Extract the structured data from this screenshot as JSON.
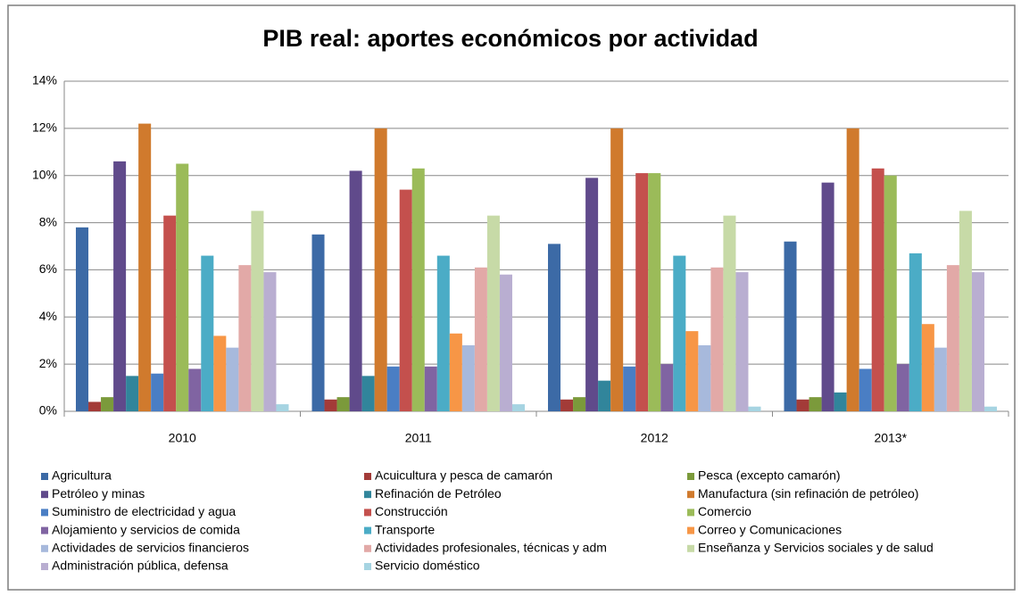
{
  "chart_data": {
    "type": "bar",
    "title": "PIB real: aportes económicos por actividad",
    "categories": [
      "2010",
      "2011",
      "2012",
      "2013*"
    ],
    "ylim": [
      0,
      14
    ],
    "yticks": [
      {
        "value": 0,
        "label": "0%"
      },
      {
        "value": 2,
        "label": "2%"
      },
      {
        "value": 4,
        "label": "4%"
      },
      {
        "value": 6,
        "label": "6%"
      },
      {
        "value": 8,
        "label": "8%"
      },
      {
        "value": 10,
        "label": "10%"
      },
      {
        "value": 12,
        "label": "12%"
      },
      {
        "value": 14,
        "label": "14%"
      }
    ],
    "grid": true,
    "legend": "bottom",
    "series": [
      {
        "name": "Agricultura",
        "color": "#3c6aa6",
        "values": [
          7.8,
          7.5,
          7.1,
          7.2
        ]
      },
      {
        "name": "Acuicultura y pesca de camarón",
        "color": "#a33b38",
        "values": [
          0.4,
          0.5,
          0.5,
          0.5
        ]
      },
      {
        "name": "Pesca (excepto camarón)",
        "color": "#7b9a3b",
        "values": [
          0.6,
          0.6,
          0.6,
          0.6
        ]
      },
      {
        "name": "Petróleo y minas",
        "color": "#604a8b",
        "values": [
          10.6,
          10.2,
          9.9,
          9.7
        ]
      },
      {
        "name": "Refinación de Petróleo",
        "color": "#31859b",
        "values": [
          1.5,
          1.5,
          1.3,
          0.8
        ]
      },
      {
        "name": "Manufactura (sin refinación de petróleo)",
        "color": "#d07a2d",
        "values": [
          12.2,
          12.0,
          12.0,
          12.0
        ]
      },
      {
        "name": "Suministro de electricidad y agua",
        "color": "#4a7ec4",
        "values": [
          1.6,
          1.9,
          1.9,
          1.8
        ]
      },
      {
        "name": "Construcción",
        "color": "#c4504d",
        "values": [
          8.3,
          9.4,
          10.1,
          10.3
        ]
      },
      {
        "name": "Comercio",
        "color": "#9bbb59",
        "values": [
          10.5,
          10.3,
          10.1,
          10.0
        ]
      },
      {
        "name": "Alojamiento y servicios de comida",
        "color": "#8064a2",
        "values": [
          1.8,
          1.9,
          2.0,
          2.0
        ]
      },
      {
        "name": "Transporte",
        "color": "#4bacc6",
        "values": [
          6.6,
          6.6,
          6.6,
          6.7
        ]
      },
      {
        "name": "Correo y Comunicaciones",
        "color": "#f79646",
        "values": [
          3.2,
          3.3,
          3.4,
          3.7
        ]
      },
      {
        "name": "Actividades de servicios financieros",
        "color": "#a7b9dc",
        "values": [
          2.7,
          2.8,
          2.8,
          2.7
        ]
      },
      {
        "name": "Actividades profesionales, técnicas y adm",
        "color": "#e2a9a7",
        "values": [
          6.2,
          6.1,
          6.1,
          6.2
        ]
      },
      {
        "name": "Enseñanza  y Servicios sociales y de salud",
        "color": "#c7daa7",
        "values": [
          8.5,
          8.3,
          8.3,
          8.5
        ]
      },
      {
        "name": "Administración pública, defensa",
        "color": "#b9aed1",
        "values": [
          5.9,
          5.8,
          5.9,
          5.9
        ]
      },
      {
        "name": "Servicio doméstico",
        "color": "#a6d4e2",
        "values": [
          0.3,
          0.3,
          0.2,
          0.2
        ]
      }
    ]
  }
}
